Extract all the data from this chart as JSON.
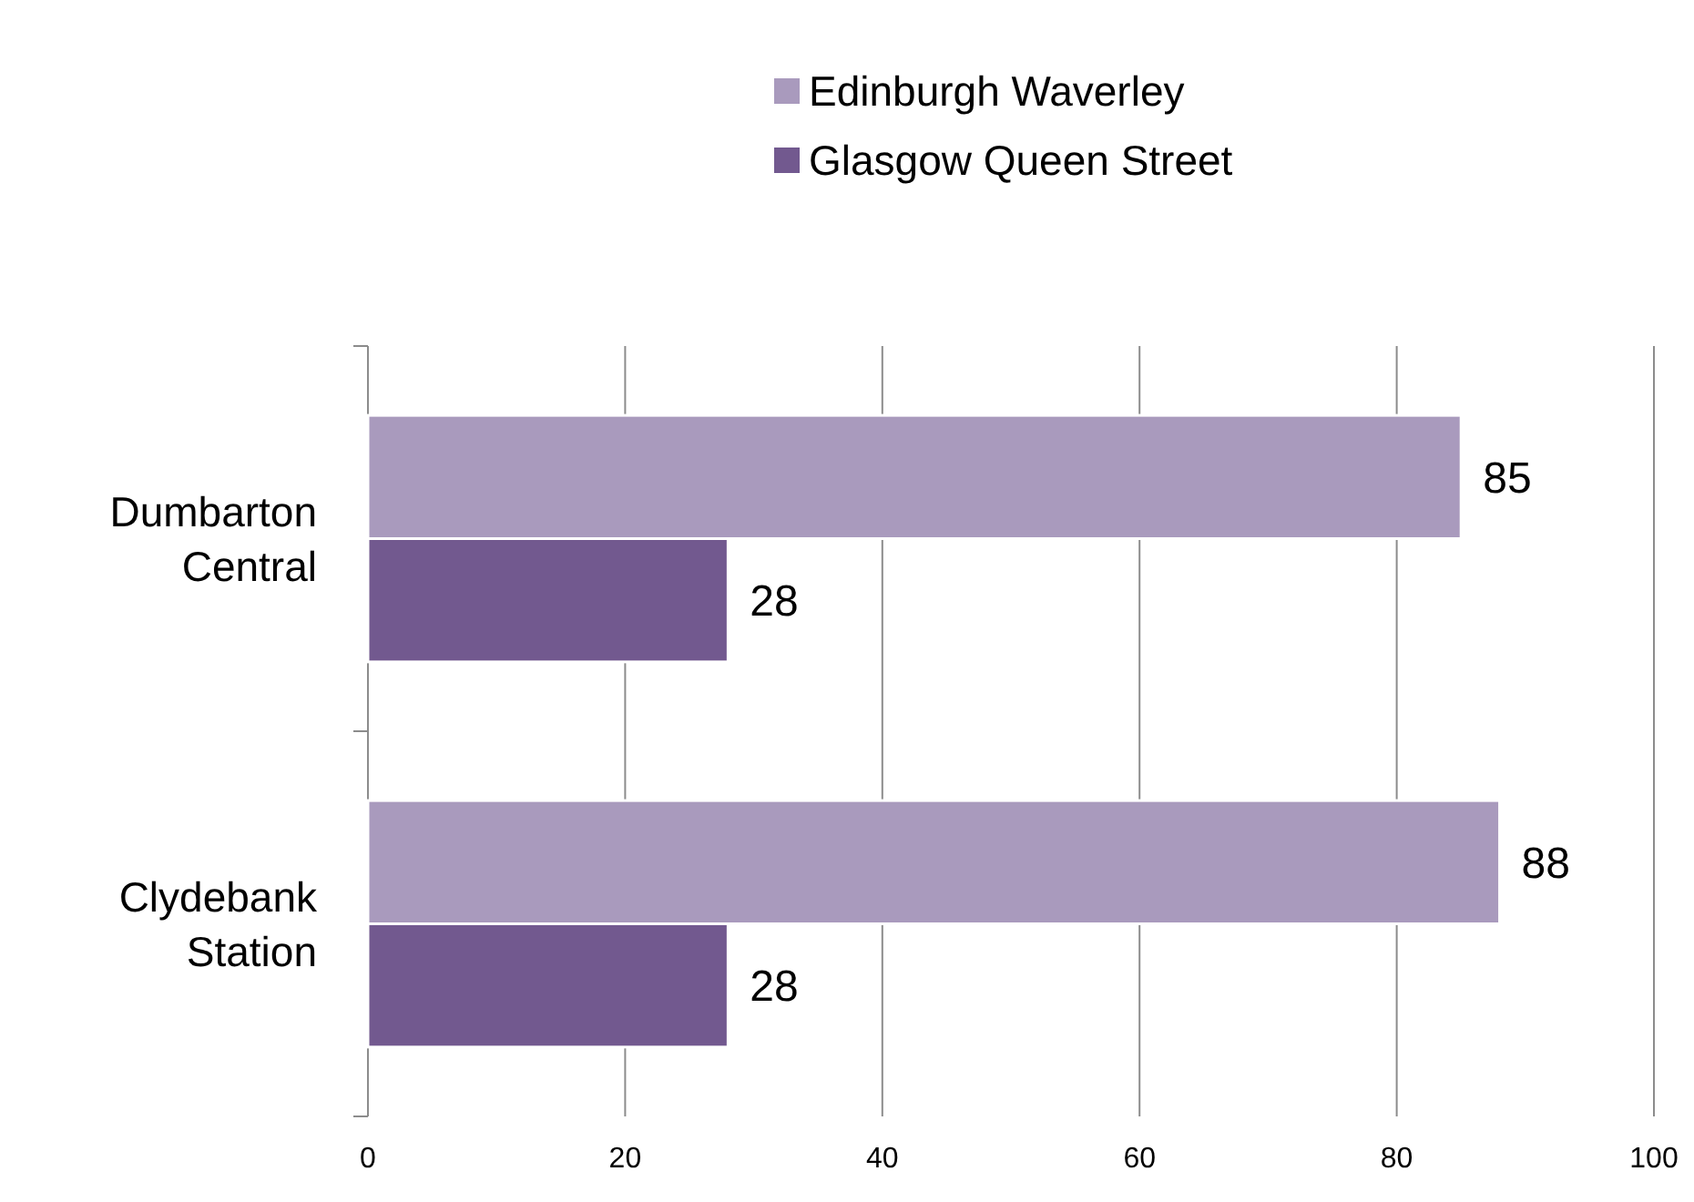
{
  "chart_data": {
    "type": "bar",
    "orientation": "horizontal",
    "categories": [
      "Dumbarton Central",
      "Clydebank Station"
    ],
    "series": [
      {
        "name": "Edinburgh Waverley",
        "color": "#a99abd",
        "values": [
          85,
          88
        ]
      },
      {
        "name": "Glasgow Queen Street",
        "color": "#72598f",
        "values": [
          28,
          28
        ]
      }
    ],
    "xlim": [
      0,
      100
    ],
    "xticks": [
      0,
      20,
      40,
      60,
      80,
      100
    ],
    "grid": "x",
    "legend": "top",
    "data_labels": true
  }
}
